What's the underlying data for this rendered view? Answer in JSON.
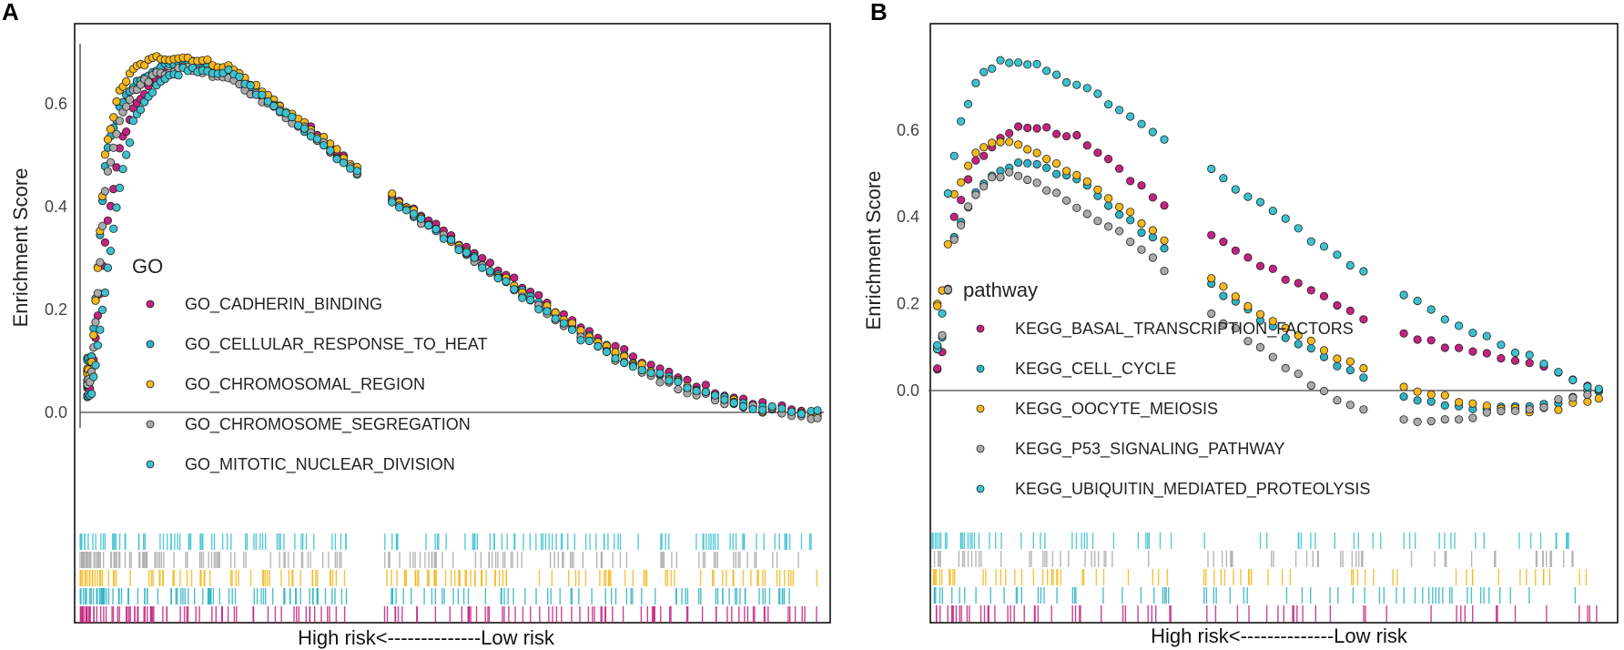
{
  "panels": {
    "a": {
      "letter": "A"
    },
    "b": {
      "letter": "B"
    }
  },
  "colors": {
    "magenta": "#c2237f",
    "teal": "#2fb3c4",
    "orange": "#f5b81b",
    "gray": "#aaaaaa",
    "teal2": "#3cc1cf"
  },
  "chart_data": [
    {
      "type": "scatter",
      "title": "",
      "panel": "A",
      "ylabel": "Enrichment Score",
      "xlabel": "High risk<--------------Low risk",
      "ylim": [
        -0.02,
        0.72
      ],
      "xlim": [
        0,
        1
      ],
      "yticks": [
        0.0,
        0.2,
        0.4,
        0.6
      ],
      "ytick_labels": [
        "0.0",
        "0.2",
        "0.4",
        "0.6"
      ],
      "legend": {
        "title": "GO",
        "placement": "center-left",
        "entries": [
          {
            "label": "GO_CADHERIN_BINDING",
            "color": "#c2237f"
          },
          {
            "label": "GO_CELLULAR_RESPONSE_TO_HEAT",
            "color": "#2fb3c4"
          },
          {
            "label": "GO_CHROMOSOMAL_REGION",
            "color": "#f5b81b"
          },
          {
            "label": "GO_CHROMOSOME_SEGREGATION",
            "color": "#aaaaaa"
          },
          {
            "label": "GO_MITOTIC_NUCLEAR_DIVISION",
            "color": "#3cc1cf"
          }
        ]
      },
      "series": [
        {
          "name": "GO_CADHERIN_BINDING",
          "color": "#c2237f",
          "x": [
            0.01,
            0.03,
            0.05,
            0.07,
            0.1,
            0.14,
            0.2,
            0.3,
            0.4,
            0.5,
            0.6,
            0.7,
            0.8,
            0.9,
            0.99
          ],
          "y": [
            0.05,
            0.35,
            0.52,
            0.6,
            0.65,
            0.68,
            0.66,
            0.56,
            0.44,
            0.34,
            0.24,
            0.14,
            0.07,
            0.02,
            0.0
          ]
        },
        {
          "name": "GO_CELLULAR_RESPONSE_TO_HEAT",
          "color": "#2fb3c4",
          "x": [
            0.01,
            0.03,
            0.05,
            0.07,
            0.1,
            0.14,
            0.2,
            0.3,
            0.4,
            0.5,
            0.6,
            0.7,
            0.8,
            0.9,
            0.99
          ],
          "y": [
            0.1,
            0.5,
            0.6,
            0.64,
            0.67,
            0.68,
            0.66,
            0.55,
            0.43,
            0.33,
            0.23,
            0.13,
            0.06,
            0.01,
            -0.01
          ]
        },
        {
          "name": "GO_CHROMOSOMAL_REGION",
          "color": "#f5b81b",
          "x": [
            0.01,
            0.03,
            0.05,
            0.07,
            0.1,
            0.14,
            0.2,
            0.3,
            0.4,
            0.5,
            0.6,
            0.7,
            0.8,
            0.9,
            0.99
          ],
          "y": [
            0.08,
            0.52,
            0.63,
            0.67,
            0.69,
            0.69,
            0.67,
            0.56,
            0.44,
            0.33,
            0.23,
            0.13,
            0.06,
            0.01,
            -0.01
          ]
        },
        {
          "name": "GO_CHROMOSOME_SEGREGATION",
          "color": "#aaaaaa",
          "x": [
            0.01,
            0.03,
            0.05,
            0.07,
            0.1,
            0.14,
            0.2,
            0.3,
            0.4,
            0.5,
            0.6,
            0.7,
            0.8,
            0.9,
            0.99
          ],
          "y": [
            0.06,
            0.45,
            0.58,
            0.63,
            0.66,
            0.67,
            0.65,
            0.55,
            0.43,
            0.33,
            0.22,
            0.12,
            0.05,
            0.01,
            -0.01
          ]
        },
        {
          "name": "GO_MITOTIC_NUCLEAR_DIVISION",
          "color": "#3cc1cf",
          "x": [
            0.01,
            0.03,
            0.05,
            0.07,
            0.1,
            0.14,
            0.2,
            0.3,
            0.4,
            0.5,
            0.6,
            0.7,
            0.8,
            0.9,
            0.99
          ],
          "y": [
            0.03,
            0.25,
            0.45,
            0.58,
            0.64,
            0.67,
            0.66,
            0.55,
            0.43,
            0.33,
            0.22,
            0.12,
            0.06,
            0.01,
            0.0
          ]
        }
      ]
    },
    {
      "type": "scatter",
      "title": "",
      "panel": "B",
      "ylabel": "Enrichment Score",
      "xlabel": "High risk<--------------Low risk",
      "ylim": [
        -0.1,
        0.78
      ],
      "xlim": [
        0,
        1
      ],
      "yticks": [
        0.0,
        0.2,
        0.4,
        0.6
      ],
      "ytick_labels": [
        "0.0",
        "0.2",
        "0.4",
        "0.6"
      ],
      "legend": {
        "title": "pathway",
        "placement": "center-left",
        "entries": [
          {
            "label": "KEGG_BASAL_TRANSCRIPTION_FACTORS",
            "color": "#c2237f"
          },
          {
            "label": "KEGG_CELL_CYCLE",
            "color": "#2fb3c4"
          },
          {
            "label": "KEGG_OOCYTE_MEIOSIS",
            "color": "#f5b81b"
          },
          {
            "label": "KEGG_P53_SIGNALING_PATHWAY",
            "color": "#aaaaaa"
          },
          {
            "label": "KEGG_UBIQUITIN_MEDIATED_PROTEOLYSIS",
            "color": "#3cc1cf"
          }
        ]
      },
      "series": [
        {
          "name": "KEGG_BASAL_TRANSCRIPTION_FACTORS",
          "color": "#c2237f",
          "x": [
            0.01,
            0.03,
            0.06,
            0.09,
            0.12,
            0.15,
            0.22,
            0.3,
            0.4,
            0.5,
            0.6,
            0.7,
            0.8,
            0.9,
            0.99
          ],
          "y": [
            0.05,
            0.4,
            0.52,
            0.57,
            0.6,
            0.61,
            0.58,
            0.48,
            0.37,
            0.28,
            0.2,
            0.13,
            0.09,
            0.06,
            0.0
          ]
        },
        {
          "name": "KEGG_CELL_CYCLE",
          "color": "#2fb3c4",
          "x": [
            0.01,
            0.03,
            0.06,
            0.09,
            0.12,
            0.15,
            0.22,
            0.3,
            0.4,
            0.5,
            0.6,
            0.7,
            0.8,
            0.9,
            0.99
          ],
          "y": [
            0.1,
            0.35,
            0.45,
            0.5,
            0.52,
            0.52,
            0.48,
            0.38,
            0.26,
            0.15,
            0.06,
            -0.01,
            -0.04,
            -0.04,
            0.0
          ]
        },
        {
          "name": "KEGG_OOCYTE_MEIOSIS",
          "color": "#f5b81b",
          "x": [
            0.01,
            0.03,
            0.06,
            0.09,
            0.12,
            0.15,
            0.22,
            0.3,
            0.4,
            0.5,
            0.6,
            0.7,
            0.8,
            0.9,
            0.99
          ],
          "y": [
            0.2,
            0.45,
            0.54,
            0.57,
            0.57,
            0.55,
            0.49,
            0.4,
            0.27,
            0.17,
            0.08,
            0.01,
            -0.03,
            -0.05,
            -0.02
          ]
        },
        {
          "name": "KEGG_P53_SIGNALING_PATHWAY",
          "color": "#aaaaaa",
          "x": [
            0.01,
            0.03,
            0.06,
            0.09,
            0.12,
            0.15,
            0.22,
            0.3,
            0.4,
            0.5,
            0.6,
            0.7,
            0.8,
            0.9,
            0.99
          ],
          "y": [
            0.1,
            0.35,
            0.45,
            0.49,
            0.5,
            0.48,
            0.42,
            0.34,
            0.2,
            0.08,
            -0.02,
            -0.07,
            -0.06,
            -0.04,
            0.0
          ]
        },
        {
          "name": "KEGG_UBIQUITIN_MEDIATED_PROTEOLYSIS",
          "color": "#3cc1cf",
          "x": [
            0.01,
            0.02,
            0.04,
            0.06,
            0.08,
            0.1,
            0.15,
            0.22,
            0.3,
            0.4,
            0.5,
            0.6,
            0.7,
            0.8,
            0.9,
            0.99
          ],
          "y": [
            0.1,
            0.45,
            0.62,
            0.7,
            0.74,
            0.76,
            0.75,
            0.7,
            0.63,
            0.52,
            0.42,
            0.31,
            0.22,
            0.14,
            0.07,
            0.0
          ]
        }
      ]
    }
  ]
}
